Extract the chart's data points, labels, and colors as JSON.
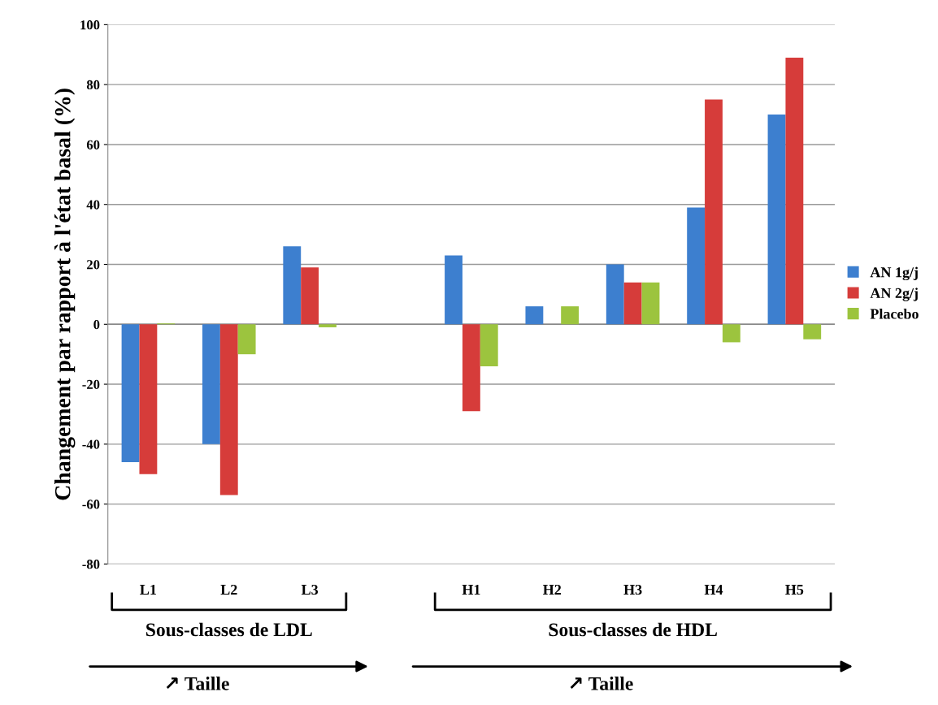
{
  "chart_data": {
    "type": "bar",
    "ylabel": "Changement par rapport à l'état basal (%)",
    "categories": [
      "L1",
      "L2",
      "L3",
      null,
      "H1",
      "H2",
      "H3",
      "H4",
      "H5"
    ],
    "series": [
      {
        "name": "AN 1g/j",
        "color": "#3d7fcf",
        "values": [
          -46,
          -40,
          26,
          null,
          23,
          6,
          20,
          39,
          70
        ]
      },
      {
        "name": "AN 2g/j",
        "color": "#d63c3a",
        "values": [
          -50,
          -57,
          19,
          null,
          -29,
          0,
          14,
          75,
          89
        ]
      },
      {
        "name": "Placebo",
        "color": "#9cc43e",
        "values": [
          0.3,
          -10,
          -1,
          null,
          -14,
          6,
          14,
          -6,
          -5
        ]
      }
    ],
    "ylim": [
      -80,
      100
    ],
    "yticks": [
      -80,
      -60,
      -40,
      -20,
      0,
      20,
      40,
      60,
      80,
      100
    ],
    "grid": "y",
    "legend": "right",
    "annotations": [
      "Sous-classes de LDL",
      "Sous-classes de HDL",
      "↗ Taille",
      "↗ Taille"
    ]
  }
}
